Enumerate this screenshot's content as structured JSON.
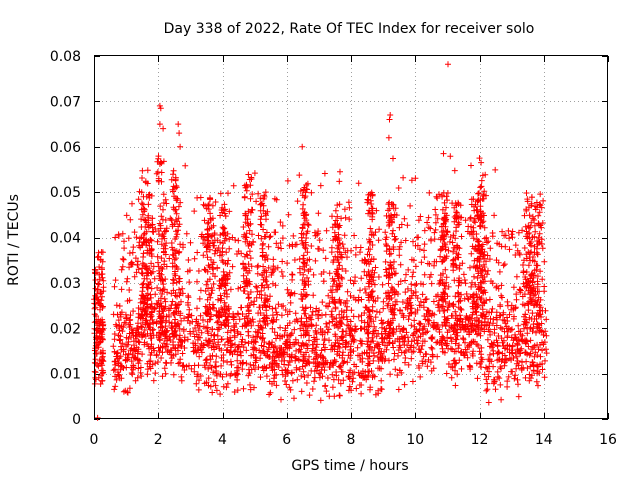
{
  "chart_data": {
    "type": "scatter",
    "title": "Day 338 of 2022, Rate Of TEC Index for receiver solo",
    "xlabel": "GPS time / hours",
    "ylabel": "ROTI / TECUs",
    "xlim": [
      0,
      16
    ],
    "ylim": [
      0,
      0.08
    ],
    "x_ticks": [
      0,
      2,
      4,
      6,
      8,
      10,
      12,
      14,
      16
    ],
    "y_ticks": [
      0,
      0.01,
      0.02,
      0.03,
      0.04,
      0.05,
      0.06,
      0.07,
      0.08
    ],
    "x_tick_labels": [
      "0",
      "2",
      "4",
      "6",
      "8",
      "10",
      "12",
      "14",
      "16"
    ],
    "y_tick_labels": [
      "0",
      "0.01",
      "0.02",
      "0.03",
      "0.04",
      "0.05",
      "0.06",
      "0.07",
      "0.08"
    ],
    "grid": true,
    "marker": "+",
    "marker_color": "#ff0000",
    "series": [
      {
        "name": "ROTI",
        "notes": "dense cloud of roughly 6000 points between 0 and 14.1 h, bulk 0.005-0.03 TECU",
        "outliers": [
          [
            2.05,
            0.069
          ],
          [
            2.08,
            0.0685
          ],
          [
            2.05,
            0.065
          ],
          [
            2.15,
            0.064
          ],
          [
            2.62,
            0.065
          ],
          [
            2.65,
            0.063
          ],
          [
            2.68,
            0.06
          ],
          [
            6.48,
            0.06
          ],
          [
            9.22,
            0.067
          ],
          [
            9.2,
            0.066
          ],
          [
            9.18,
            0.062
          ],
          [
            10.88,
            0.0585
          ],
          [
            11.02,
            0.0782
          ],
          [
            12.0,
            0.0575
          ],
          [
            12.05,
            0.0565
          ]
        ]
      }
    ]
  }
}
